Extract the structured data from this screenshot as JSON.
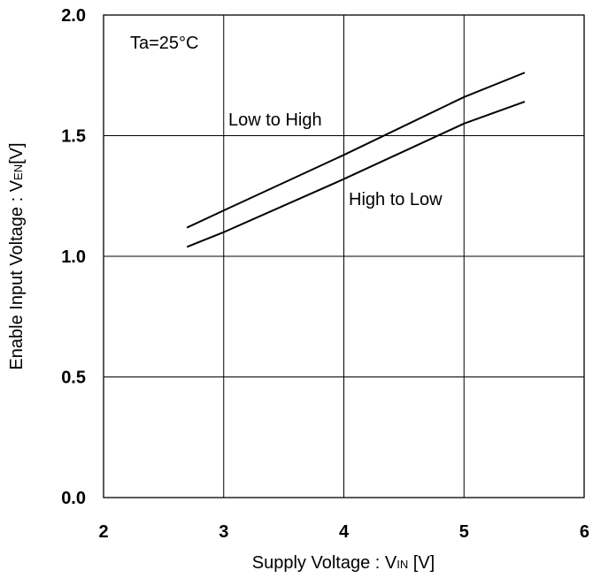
{
  "chart_data": {
    "type": "line",
    "title": "",
    "annotation": "Ta=25°C",
    "xlabel": {
      "main": "Supply Voltage : V",
      "sub": "IN",
      "unit": " [V]"
    },
    "ylabel": {
      "main": "Enable Input Voltage : V",
      "sub": "EN",
      "unit": "[V]"
    },
    "xlim": [
      2,
      6
    ],
    "ylim": [
      0.0,
      2.0
    ],
    "xticks": [
      "2",
      "3",
      "4",
      "5",
      "6"
    ],
    "yticks": [
      "0.0",
      "0.5",
      "1.0",
      "1.5",
      "2.0"
    ],
    "grid": true,
    "series": [
      {
        "name": "Low to High",
        "x": [
          2.7,
          3.0,
          4.0,
          5.0,
          5.5
        ],
        "y": [
          1.12,
          1.19,
          1.42,
          1.66,
          1.76
        ],
        "color": "#000000"
      },
      {
        "name": "High to Low",
        "x": [
          2.7,
          3.0,
          4.0,
          5.0,
          5.5
        ],
        "y": [
          1.04,
          1.1,
          1.32,
          1.55,
          1.64
        ],
        "color": "#000000"
      }
    ]
  }
}
